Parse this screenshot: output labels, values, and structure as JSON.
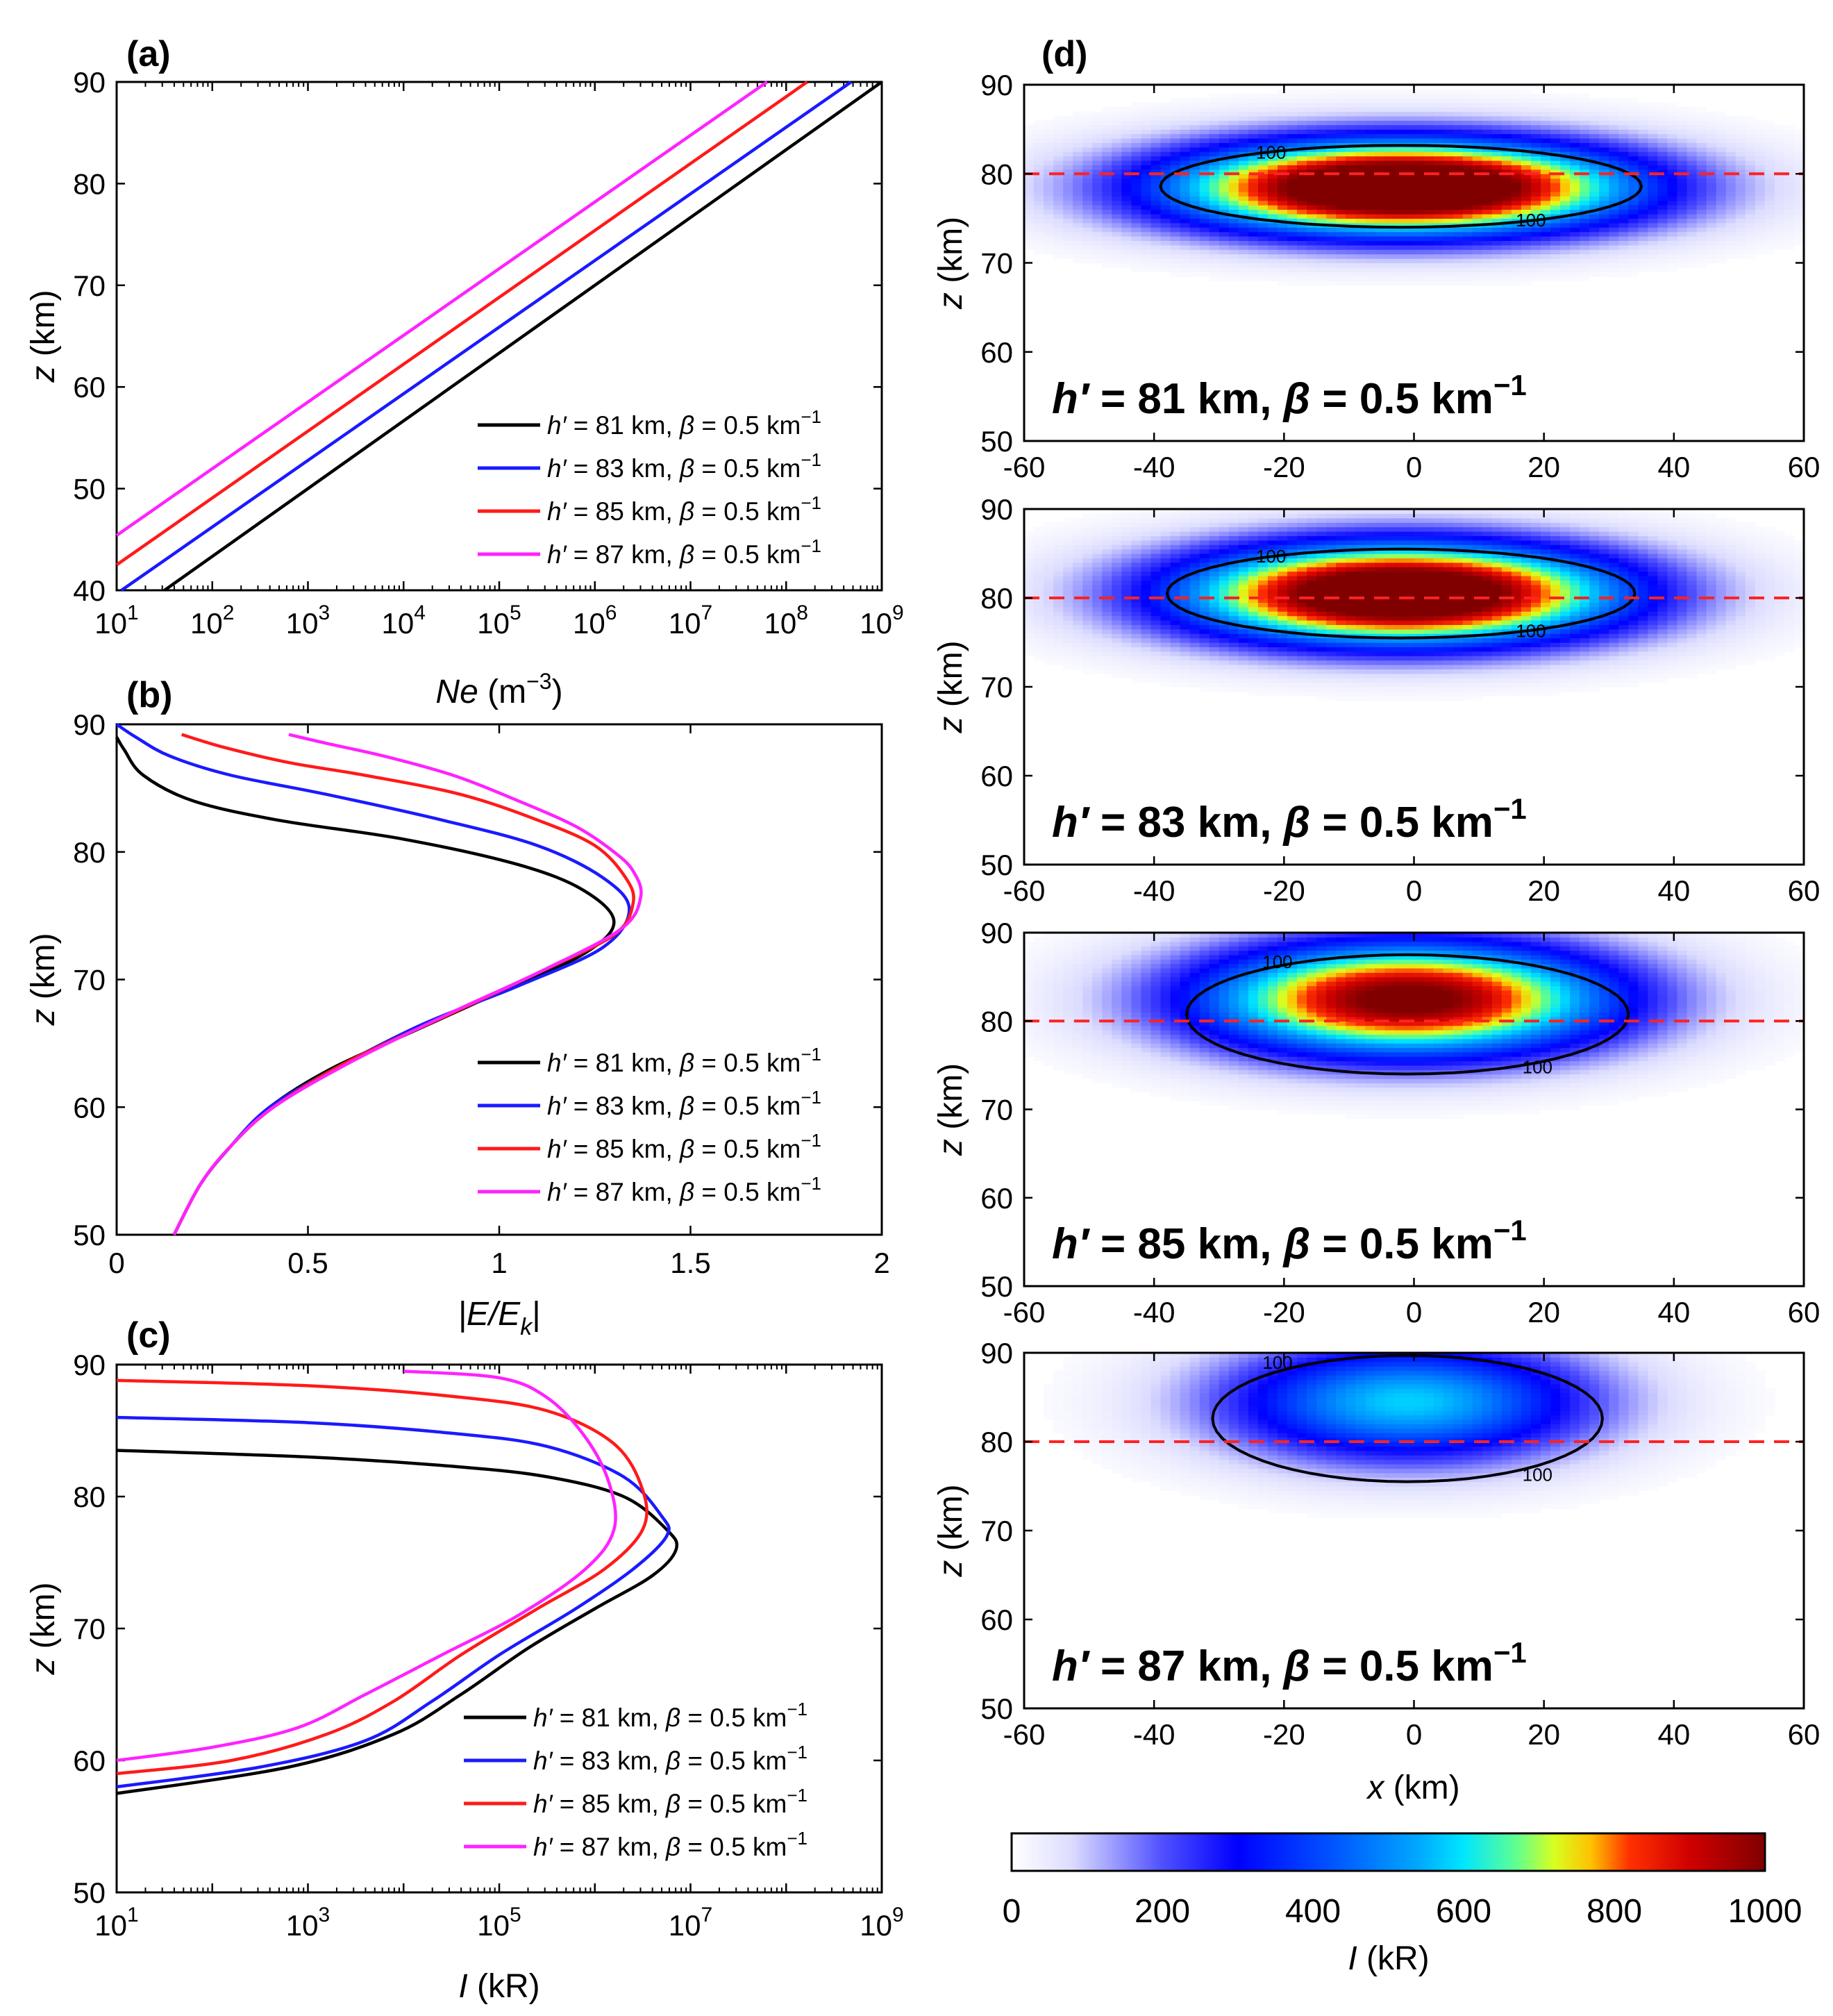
{
  "colors": {
    "black": "#000000",
    "blue": "#1a1aff",
    "red": "#ff1a1a",
    "magenta": "#ff22ff",
    "reference_line": "#ff2222",
    "contour": "#000000"
  },
  "legend_entries": [
    {
      "h_label": "h′",
      "h_value": " = 81 km, ",
      "beta_label": "β",
      "beta_value": " = 0.5 km",
      "beta_unit_exp": "−1"
    },
    {
      "h_label": "h′",
      "h_value": " = 83 km, ",
      "beta_label": "β",
      "beta_value": " = 0.5 km",
      "beta_unit_exp": "−1"
    },
    {
      "h_label": "h′",
      "h_value": " = 85 km, ",
      "beta_label": "β",
      "beta_value": " = 0.5 km",
      "beta_unit_exp": "−1"
    },
    {
      "h_label": "h′",
      "h_value": " = 87 km, ",
      "beta_label": "β",
      "beta_value": " = 0.5 km",
      "beta_unit_exp": "−1"
    }
  ],
  "chart_data": [
    {
      "panel": "(a)",
      "type": "line",
      "xscale": "log",
      "xlabel_main": "Ne",
      "xlabel_unit": " (m",
      "xlabel_exp": "−3",
      "xlabel_close": ")",
      "ylabel": "z",
      "ylabel_unit": " (km)",
      "xlim": [
        10,
        1000000000
      ],
      "ylim": [
        40,
        90
      ],
      "xticks": [
        {
          "value": 10,
          "base": "10",
          "exp": "1"
        },
        {
          "value": 100,
          "base": "10",
          "exp": "2"
        },
        {
          "value": 1000,
          "base": "10",
          "exp": "3"
        },
        {
          "value": 10000,
          "base": "10",
          "exp": "4"
        },
        {
          "value": 100000,
          "base": "10",
          "exp": "5"
        },
        {
          "value": 1000000,
          "base": "10",
          "exp": "6"
        },
        {
          "value": 10000000,
          "base": "10",
          "exp": "7"
        },
        {
          "value": 100000000,
          "base": "10",
          "exp": "8"
        },
        {
          "value": 1000000000,
          "base": "10",
          "exp": "9"
        }
      ],
      "yticks": [
        "40",
        "50",
        "60",
        "70",
        "80",
        "90"
      ],
      "legend_position": "lower-right",
      "series": [
        {
          "name": "h′ = 81 km, β = 0.5 km⁻¹",
          "color": "black",
          "x_log10": [
            1.5,
            9.0
          ],
          "z": [
            40,
            90
          ]
        },
        {
          "name": "h′ = 83 km, β = 0.5 km⁻¹",
          "color": "blue",
          "x_log10": [
            1.05,
            8.68
          ],
          "z": [
            40,
            90
          ]
        },
        {
          "name": "h′ = 85 km, β = 0.5 km⁻¹",
          "color": "red",
          "x_log10": [
            1.0,
            8.22
          ],
          "z": [
            42.5,
            90
          ]
        },
        {
          "name": "h′ = 87 km, β = 0.5 km⁻¹",
          "color": "magenta",
          "x_log10": [
            1.0,
            7.8
          ],
          "z": [
            45.4,
            90
          ]
        }
      ]
    },
    {
      "panel": "(b)",
      "type": "line",
      "xscale": "linear",
      "xlabel_main": "|E/E",
      "xlabel_sub": "k",
      "xlabel_close": "|",
      "ylabel": "z",
      "ylabel_unit": " (km)",
      "xlim": [
        0,
        2
      ],
      "ylim": [
        50,
        90
      ],
      "xticks": [
        "0",
        "0.5",
        "1",
        "1.5",
        "2"
      ],
      "yticks": [
        "50",
        "60",
        "70",
        "80",
        "90"
      ],
      "legend_position": "lower-right",
      "series": [
        {
          "name": "h′ = 81 km, β = 0.5 km⁻¹",
          "color": "black",
          "points": [
            [
              0.0,
              89.0
            ],
            [
              0.02,
              88.0
            ],
            [
              0.07,
              86.0
            ],
            [
              0.2,
              84.0
            ],
            [
              0.42,
              82.5
            ],
            [
              0.75,
              81.0
            ],
            [
              1.05,
              79.0
            ],
            [
              1.22,
              77.0
            ],
            [
              1.3,
              74.5
            ],
            [
              1.22,
              72.0
            ],
            [
              1.0,
              69.0
            ],
            [
              0.78,
              66.0
            ],
            [
              0.56,
              63.0
            ],
            [
              0.4,
              60.0
            ],
            [
              0.3,
              57.0
            ],
            [
              0.22,
              54.0
            ],
            [
              0.15,
              50.0
            ]
          ]
        },
        {
          "name": "h′ = 83 km, β = 0.5 km⁻¹",
          "color": "blue",
          "points": [
            [
              0.0,
              90.0
            ],
            [
              0.05,
              89.0
            ],
            [
              0.14,
              87.5
            ],
            [
              0.3,
              86.0
            ],
            [
              0.55,
              84.5
            ],
            [
              0.85,
              82.5
            ],
            [
              1.1,
              80.5
            ],
            [
              1.27,
              78.0
            ],
            [
              1.34,
              75.5
            ],
            [
              1.27,
              72.5
            ],
            [
              1.05,
              69.5
            ],
            [
              0.8,
              66.5
            ],
            [
              0.57,
              63.0
            ],
            [
              0.4,
              60.0
            ],
            [
              0.3,
              57.0
            ],
            [
              0.22,
              54.0
            ],
            [
              0.15,
              50.0
            ]
          ]
        },
        {
          "name": "h′ = 85 km, β = 0.5 km⁻¹",
          "color": "red",
          "points": [
            [
              0.17,
              89.2
            ],
            [
              0.28,
              88.2
            ],
            [
              0.45,
              87.0
            ],
            [
              0.65,
              86.0
            ],
            [
              0.9,
              84.5
            ],
            [
              1.1,
              82.5
            ],
            [
              1.25,
              80.5
            ],
            [
              1.33,
              78.0
            ],
            [
              1.35,
              76.0
            ],
            [
              1.3,
              73.5
            ],
            [
              1.1,
              70.5
            ],
            [
              0.85,
              67.0
            ],
            [
              0.6,
              63.5
            ],
            [
              0.41,
              60.0
            ],
            [
              0.3,
              57.0
            ],
            [
              0.22,
              54.0
            ],
            [
              0.15,
              50.0
            ]
          ]
        },
        {
          "name": "h′ = 87 km, β = 0.5 km⁻¹",
          "color": "magenta",
          "points": [
            [
              0.45,
              89.2
            ],
            [
              0.55,
              88.5
            ],
            [
              0.7,
              87.5
            ],
            [
              0.88,
              86.0
            ],
            [
              1.05,
              84.0
            ],
            [
              1.2,
              82.0
            ],
            [
              1.3,
              80.0
            ],
            [
              1.35,
              78.5
            ],
            [
              1.37,
              76.5
            ],
            [
              1.32,
              74.0
            ],
            [
              1.12,
              70.8
            ],
            [
              0.86,
              67.2
            ],
            [
              0.61,
              63.5
            ],
            [
              0.41,
              60.0
            ],
            [
              0.3,
              57.0
            ],
            [
              0.22,
              54.0
            ],
            [
              0.15,
              50.0
            ]
          ]
        }
      ]
    },
    {
      "panel": "(c)",
      "type": "line",
      "xscale": "log",
      "xlabel_main": "I",
      "xlabel_unit": " (kR)",
      "ylabel": "z",
      "ylabel_unit": " (km)",
      "xlim": [
        10,
        1000000000
      ],
      "ylim": [
        50,
        90
      ],
      "xticks": [
        {
          "value": 10,
          "base": "10",
          "exp": "1"
        },
        {
          "value": 1000,
          "base": "10",
          "exp": "3"
        },
        {
          "value": 100000,
          "base": "10",
          "exp": "5"
        },
        {
          "value": 10000000,
          "base": "10",
          "exp": "7"
        },
        {
          "value": 1000000000,
          "base": "10",
          "exp": "9"
        }
      ],
      "yticks": [
        "50",
        "60",
        "70",
        "80",
        "90"
      ],
      "legend_position": "lower-right",
      "series": [
        {
          "name": "h′ = 81 km, β = 0.5 km⁻¹",
          "color": "black",
          "points_log10": [
            [
              1.0,
              83.5
            ],
            [
              3.0,
              83.0
            ],
            [
              4.5,
              82.3
            ],
            [
              5.5,
              81.5
            ],
            [
              6.3,
              80.0
            ],
            [
              6.75,
              77.5
            ],
            [
              6.85,
              76.0
            ],
            [
              6.6,
              74.0
            ],
            [
              6.0,
              71.5
            ],
            [
              5.3,
              68.5
            ],
            [
              4.6,
              65.0
            ],
            [
              3.9,
              62.0
            ],
            [
              2.8,
              59.5
            ],
            [
              1.0,
              57.5
            ]
          ]
        },
        {
          "name": "h′ = 83 km, β = 0.5 km⁻¹",
          "color": "blue",
          "points_log10": [
            [
              1.0,
              86.0
            ],
            [
              3.0,
              85.6
            ],
            [
              4.5,
              84.8
            ],
            [
              5.5,
              83.8
            ],
            [
              6.3,
              81.5
            ],
            [
              6.7,
              78.5
            ],
            [
              6.75,
              77.0
            ],
            [
              6.4,
              74.5
            ],
            [
              5.8,
              71.5
            ],
            [
              5.0,
              68.0
            ],
            [
              4.3,
              64.5
            ],
            [
              3.6,
              61.5
            ],
            [
              2.5,
              59.5
            ],
            [
              1.0,
              58.0
            ]
          ]
        },
        {
          "name": "h′ = 85 km, β = 0.5 km⁻¹",
          "color": "red",
          "points_log10": [
            [
              1.0,
              88.8
            ],
            [
              3.0,
              88.4
            ],
            [
              4.5,
              87.6
            ],
            [
              5.5,
              86.5
            ],
            [
              6.2,
              84.0
            ],
            [
              6.5,
              80.5
            ],
            [
              6.5,
              77.5
            ],
            [
              6.1,
              74.5
            ],
            [
              5.4,
              71.5
            ],
            [
              4.6,
              68.0
            ],
            [
              3.9,
              64.5
            ],
            [
              3.2,
              62.0
            ],
            [
              2.2,
              60.0
            ],
            [
              1.0,
              59.0
            ]
          ]
        },
        {
          "name": "h′ = 87 km, β = 0.5 km⁻¹",
          "color": "magenta",
          "points_log10": [
            [
              4.0,
              89.5
            ],
            [
              5.0,
              89.0
            ],
            [
              5.5,
              87.5
            ],
            [
              5.9,
              84.5
            ],
            [
              6.15,
              81.0
            ],
            [
              6.2,
              77.5
            ],
            [
              5.9,
              74.5
            ],
            [
              5.2,
              71.0
            ],
            [
              4.4,
              68.0
            ],
            [
              3.6,
              65.0
            ],
            [
              2.9,
              62.5
            ],
            [
              2.0,
              61.0
            ],
            [
              1.0,
              60.0
            ]
          ]
        }
      ]
    },
    {
      "panel": "(d)",
      "type": "heatmap",
      "xlabel_main": "x",
      "xlabel_unit": " (km)",
      "ylabel": "z",
      "ylabel_unit": " (km)",
      "xlim": [
        -60,
        60
      ],
      "ylim": [
        50,
        90
      ],
      "xticks": [
        "-60",
        "-40",
        "-20",
        "0",
        "20",
        "40",
        "60"
      ],
      "yticks": [
        "50",
        "60",
        "70",
        "80",
        "90"
      ],
      "reference_line_z": 80,
      "contour_level_label": "100",
      "colorbar": {
        "min": 0,
        "max": 1000,
        "ticks": [
          "0",
          "200",
          "400",
          "600",
          "800",
          "1000"
        ],
        "label_main": "I",
        "label_unit": " (kR)"
      },
      "subplots": [
        {
          "h_value": "81",
          "title_prefix": "h′ = ",
          "title_mid": "81 km, ",
          "beta": "β",
          "title_suffix": " = 0.5 km",
          "exp": "−1",
          "center_x": -2,
          "center_z": 78.5,
          "extent_x": 44,
          "extent_z": 6.5,
          "peak": 1300,
          "contour_x": 37,
          "contour_z_top": 83.2,
          "contour_z_bottom": 74.0
        },
        {
          "h_value": "83",
          "title_prefix": "h′ = ",
          "title_mid": "83 km, ",
          "beta": "β",
          "title_suffix": " = 0.5 km",
          "exp": "−1",
          "center_x": -2,
          "center_z": 80.5,
          "extent_x": 42,
          "extent_z": 7.0,
          "peak": 1250,
          "contour_x": 36,
          "contour_z_top": 85.5,
          "contour_z_bottom": 75.5
        },
        {
          "h_value": "85",
          "title_prefix": "h′ = ",
          "title_mid": "85 km, ",
          "beta": "β",
          "title_suffix": " = 0.5 km",
          "exp": "−1",
          "center_x": -1,
          "center_z": 82.5,
          "extent_x": 40,
          "extent_z": 8.0,
          "peak": 1050,
          "contour_x": 34,
          "contour_z_top": 87.5,
          "contour_z_bottom": 74.0
        },
        {
          "h_value": "87",
          "title_prefix": "h′ = ",
          "title_mid": "87 km, ",
          "beta": "β",
          "title_suffix": " = 0.5 km",
          "exp": "−1",
          "center_x": -1,
          "center_z": 84.5,
          "extent_x": 36,
          "extent_z": 8.5,
          "peak": 580,
          "contour_x": 30,
          "contour_z_top": 89.7,
          "contour_z_bottom": 75.5
        }
      ]
    }
  ]
}
